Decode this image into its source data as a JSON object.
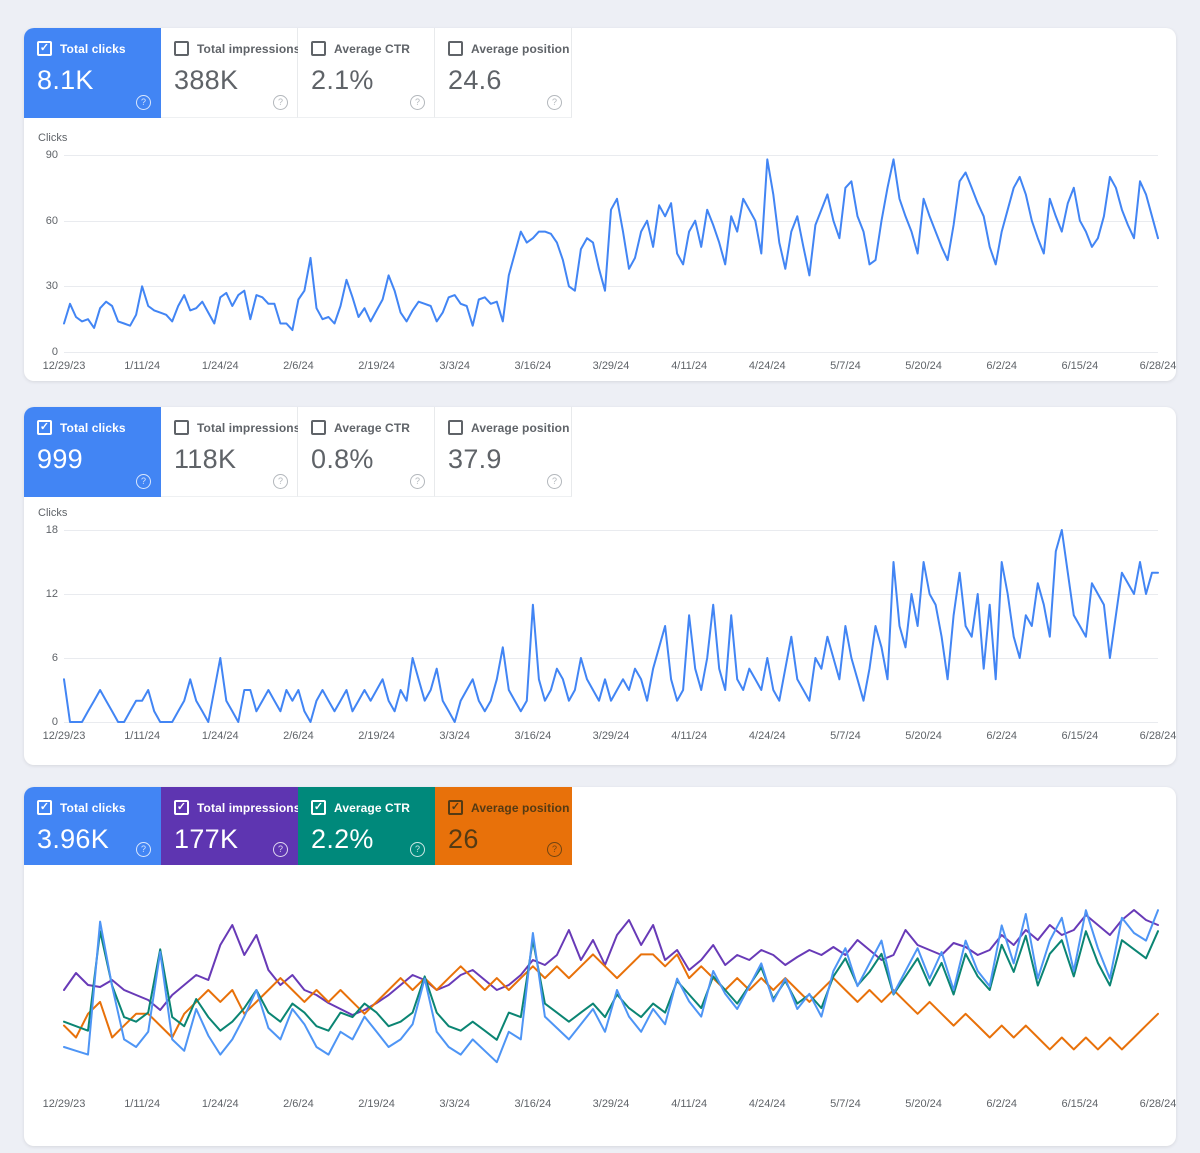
{
  "page": {
    "background": "#edeff5",
    "panel_background": "#ffffff"
  },
  "icons": {
    "check": "✓",
    "help": "?"
  },
  "colors": {
    "clicks": "#4285f4",
    "impressions": "#5e35b1",
    "ctr": "#00897b",
    "position": "#e8710a",
    "axis_text": "#5f6368",
    "grid": "#e9ebef"
  },
  "panels": [
    {
      "cards": [
        {
          "label": "Total clicks",
          "value": "8.1K",
          "selected": true,
          "color": "#4285f4",
          "text": "#ffffff"
        },
        {
          "label": "Total impressions",
          "value": "388K",
          "selected": false
        },
        {
          "label": "Average CTR",
          "value": "2.1%",
          "selected": false
        },
        {
          "label": "Average position",
          "value": "24.6",
          "selected": false
        }
      ]
    },
    {
      "cards": [
        {
          "label": "Total clicks",
          "value": "999",
          "selected": true,
          "color": "#4285f4",
          "text": "#ffffff"
        },
        {
          "label": "Total impressions",
          "value": "118K",
          "selected": false
        },
        {
          "label": "Average CTR",
          "value": "0.8%",
          "selected": false
        },
        {
          "label": "Average position",
          "value": "37.9",
          "selected": false
        }
      ]
    },
    {
      "cards": [
        {
          "label": "Total clicks",
          "value": "3.96K",
          "selected": true,
          "color": "#4285f4",
          "text": "#ffffff"
        },
        {
          "label": "Total impressions",
          "value": "177K",
          "selected": true,
          "color": "#5e35b1",
          "text": "#ffffff"
        },
        {
          "label": "Average CTR",
          "value": "2.2%",
          "selected": true,
          "color": "#00897b",
          "text": "#ffffff"
        },
        {
          "label": "Average position",
          "value": "26",
          "selected": true,
          "color": "#e8710a",
          "text": "#543a14"
        }
      ]
    }
  ],
  "chart_data": [
    {
      "type": "line",
      "ylabel": "Clicks",
      "yticks": [
        90,
        60,
        30,
        0
      ],
      "ylim": [
        0,
        90
      ],
      "grid": true,
      "legend": "none",
      "x_labels": [
        "12/29/23",
        "1/11/24",
        "1/24/24",
        "2/6/24",
        "2/19/24",
        "3/3/24",
        "3/16/24",
        "3/29/24",
        "4/11/24",
        "4/24/24",
        "5/7/24",
        "5/20/24",
        "6/2/24",
        "6/15/24",
        "6/28/24"
      ],
      "series": [
        {
          "name": "Total clicks",
          "color": "#4285f4",
          "values": [
            13,
            22,
            16,
            14,
            15,
            11,
            20,
            23,
            21,
            14,
            13,
            12,
            17,
            30,
            21,
            19,
            18,
            17,
            14,
            21,
            26,
            19,
            20,
            23,
            18,
            13,
            25,
            27,
            21,
            26,
            28,
            15,
            26,
            25,
            22,
            22,
            13,
            13,
            10,
            24,
            28,
            43,
            20,
            15,
            16,
            13,
            21,
            33,
            25,
            16,
            20,
            14,
            19,
            24,
            35,
            28,
            18,
            14,
            19,
            23,
            22,
            21,
            14,
            18,
            25,
            26,
            22,
            21,
            12,
            24,
            25,
            22,
            23,
            14,
            35,
            45,
            55,
            50,
            52,
            55,
            55,
            54,
            50,
            42,
            30,
            28,
            47,
            52,
            50,
            38,
            28,
            65,
            70,
            55,
            38,
            43,
            55,
            60,
            48,
            67,
            62,
            68,
            45,
            40,
            55,
            60,
            48,
            65,
            58,
            50,
            40,
            62,
            55,
            70,
            65,
            60,
            45,
            88,
            72,
            50,
            38,
            55,
            62,
            48,
            35,
            58,
            65,
            72,
            60,
            52,
            75,
            78,
            62,
            55,
            40,
            42,
            60,
            75,
            88,
            70,
            62,
            55,
            45,
            70,
            62,
            55,
            48,
            42,
            58,
            78,
            82,
            75,
            68,
            62,
            48,
            40,
            55,
            65,
            75,
            80,
            72,
            60,
            52,
            45,
            70,
            62,
            55,
            68,
            75,
            60,
            55,
            48,
            52,
            62,
            80,
            75,
            65,
            58,
            52,
            78,
            72,
            62,
            52
          ]
        }
      ]
    },
    {
      "type": "line",
      "ylabel": "Clicks",
      "yticks": [
        18,
        12,
        6,
        0
      ],
      "ylim": [
        0,
        18
      ],
      "grid": true,
      "legend": "none",
      "x_labels": [
        "12/29/23",
        "1/11/24",
        "1/24/24",
        "2/6/24",
        "2/19/24",
        "3/3/24",
        "3/16/24",
        "3/29/24",
        "4/11/24",
        "4/24/24",
        "5/7/24",
        "5/20/24",
        "6/2/24",
        "6/15/24",
        "6/28/24"
      ],
      "series": [
        {
          "name": "Total clicks",
          "color": "#4285f4",
          "values": [
            4,
            0,
            0,
            0,
            1,
            2,
            3,
            2,
            1,
            0,
            0,
            1,
            2,
            2,
            3,
            1,
            0,
            0,
            0,
            1,
            2,
            4,
            2,
            1,
            0,
            3,
            6,
            2,
            1,
            0,
            3,
            3,
            1,
            2,
            3,
            2,
            1,
            3,
            2,
            3,
            1,
            0,
            2,
            3,
            2,
            1,
            2,
            3,
            1,
            2,
            3,
            2,
            3,
            4,
            2,
            1,
            3,
            2,
            6,
            4,
            2,
            3,
            5,
            2,
            1,
            0,
            2,
            3,
            4,
            2,
            1,
            2,
            4,
            7,
            3,
            2,
            1,
            2,
            11,
            4,
            2,
            3,
            5,
            4,
            2,
            3,
            6,
            4,
            3,
            2,
            4,
            2,
            3,
            4,
            3,
            5,
            4,
            2,
            5,
            7,
            9,
            4,
            2,
            3,
            10,
            5,
            3,
            6,
            11,
            5,
            3,
            10,
            4,
            3,
            5,
            4,
            3,
            6,
            3,
            2,
            5,
            8,
            4,
            3,
            2,
            6,
            5,
            8,
            6,
            4,
            9,
            6,
            4,
            2,
            5,
            9,
            7,
            4,
            15,
            9,
            7,
            12,
            9,
            15,
            12,
            11,
            8,
            4,
            10,
            14,
            9,
            8,
            12,
            5,
            11,
            4,
            15,
            12,
            8,
            6,
            10,
            9,
            13,
            11,
            8,
            16,
            18,
            14,
            10,
            9,
            8,
            13,
            12,
            11,
            6,
            10,
            14,
            13,
            12,
            15,
            12,
            14,
            14
          ]
        }
      ]
    },
    {
      "type": "line",
      "ylabel": "",
      "yticks": [],
      "grid": false,
      "legend": "none",
      "x_labels": [
        "12/29/23",
        "1/11/24",
        "1/24/24",
        "2/6/24",
        "2/19/24",
        "3/3/24",
        "3/16/24",
        "3/29/24",
        "4/11/24",
        "4/24/24",
        "5/7/24",
        "5/20/24",
        "6/2/24",
        "6/15/24",
        "6/28/24"
      ],
      "series": [
        {
          "name": "Total impressions",
          "color": "#683ab7",
          "ylim": [
            0,
            1900
          ],
          "values": [
            950,
            1120,
            1000,
            980,
            1050,
            950,
            900,
            850,
            750,
            900,
            1000,
            1100,
            1050,
            1400,
            1600,
            1300,
            1500,
            1150,
            1000,
            1100,
            950,
            900,
            820,
            760,
            700,
            750,
            820,
            900,
            1000,
            1100,
            1050,
            950,
            1000,
            1100,
            1150,
            1050,
            950,
            1000,
            1100,
            1250,
            1200,
            1300,
            1550,
            1250,
            1450,
            1200,
            1500,
            1650,
            1400,
            1600,
            1250,
            1350,
            1150,
            1250,
            1400,
            1200,
            1300,
            1250,
            1350,
            1300,
            1200,
            1280,
            1350,
            1300,
            1380,
            1300,
            1450,
            1350,
            1250,
            1300,
            1550,
            1400,
            1350,
            1300,
            1420,
            1380,
            1300,
            1350,
            1500,
            1400,
            1550,
            1450,
            1600,
            1500,
            1550,
            1700,
            1600,
            1500,
            1650,
            1750,
            1650,
            1600
          ]
        },
        {
          "name": "Average position",
          "color": "#e8710a",
          "ylim": [
            18,
            34
          ],
          "inverted": true,
          "values": [
            29,
            30,
            28,
            27,
            30,
            29,
            28,
            28,
            29,
            30,
            28,
            27,
            26,
            27,
            26,
            28,
            27,
            26,
            25,
            26,
            27,
            26,
            27,
            26,
            27,
            28,
            27,
            26,
            25,
            26,
            25,
            26,
            25,
            24,
            25,
            26,
            25,
            26,
            25,
            24,
            25,
            24,
            25,
            24,
            23,
            24,
            25,
            24,
            23,
            23,
            24,
            23,
            25,
            24,
            25,
            26,
            25,
            26,
            25,
            26,
            25,
            26,
            27,
            26,
            25,
            26,
            27,
            26,
            27,
            26,
            27,
            28,
            27,
            28,
            29,
            28,
            29,
            30,
            29,
            30,
            29,
            30,
            31,
            30,
            31,
            30,
            31,
            30,
            31,
            30,
            29,
            28
          ]
        },
        {
          "name": "Average CTR",
          "color": "#0b8573",
          "ylim": [
            0,
            4.2
          ],
          "values": [
            1.4,
            1.3,
            1.2,
            3.4,
            2.2,
            1.5,
            1.4,
            1.6,
            3.0,
            1.5,
            1.3,
            1.9,
            1.5,
            1.2,
            1.4,
            1.7,
            2.1,
            1.6,
            1.4,
            1.8,
            1.6,
            1.3,
            1.2,
            1.6,
            1.5,
            1.8,
            1.6,
            1.3,
            1.4,
            1.6,
            2.4,
            1.6,
            1.3,
            1.2,
            1.4,
            1.2,
            1.0,
            1.6,
            1.5,
            3.2,
            1.8,
            1.6,
            1.4,
            1.6,
            1.8,
            1.5,
            2.0,
            1.7,
            1.5,
            1.8,
            1.6,
            2.3,
            2.0,
            1.7,
            2.4,
            2.1,
            1.8,
            2.2,
            2.6,
            1.9,
            2.3,
            1.8,
            2.0,
            1.7,
            2.4,
            2.8,
            2.2,
            2.5,
            2.9,
            2.0,
            2.4,
            2.8,
            2.2,
            2.7,
            2.0,
            2.9,
            2.4,
            2.1,
            3.1,
            2.5,
            3.3,
            2.2,
            2.9,
            3.2,
            2.4,
            3.4,
            2.7,
            2.2,
            3.2,
            3.0,
            2.8,
            3.4
          ]
        },
        {
          "name": "Total clicks",
          "color": "#4e95f5",
          "ylim": [
            0,
            50
          ],
          "values": [
            10,
            9,
            8,
            43,
            26,
            12,
            10,
            14,
            35,
            12,
            9,
            20,
            13,
            8,
            12,
            18,
            25,
            15,
            12,
            20,
            16,
            10,
            8,
            14,
            12,
            18,
            14,
            10,
            12,
            16,
            28,
            14,
            10,
            8,
            12,
            9,
            6,
            14,
            12,
            40,
            18,
            15,
            12,
            16,
            20,
            14,
            25,
            18,
            14,
            20,
            16,
            28,
            22,
            18,
            30,
            24,
            20,
            26,
            32,
            22,
            28,
            20,
            24,
            18,
            30,
            36,
            26,
            32,
            38,
            24,
            30,
            36,
            28,
            35,
            25,
            38,
            30,
            26,
            42,
            32,
            45,
            28,
            38,
            44,
            30,
            46,
            36,
            28,
            44,
            40,
            38,
            46
          ]
        }
      ]
    }
  ]
}
